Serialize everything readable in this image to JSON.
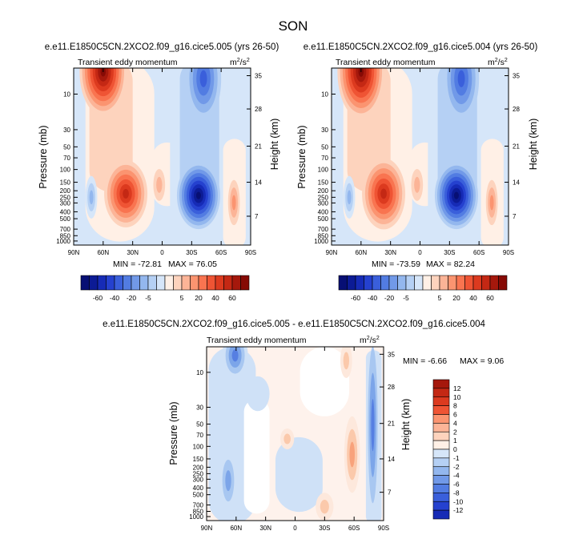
{
  "title": "SON",
  "colors": {
    "positive": [
      "#fff0e6",
      "#fdd3bd",
      "#fcb497",
      "#fb9470",
      "#f97450",
      "#ef5434",
      "#dc3a1f",
      "#c42814",
      "#a5180c",
      "#860a05"
    ],
    "negative": [
      "#d6e6f9",
      "#b5d0f4",
      "#93b7ee",
      "#7199e8",
      "#527ce2",
      "#3a5fdb",
      "#2541cf",
      "#162bb6",
      "#0c1b95",
      "#070f74"
    ],
    "diff_positive": [
      "#fde8dc",
      "#fbc9ab",
      "#f8a27b",
      "#f47a52",
      "#e95232",
      "#d3361c"
    ],
    "diff_negative": [
      "#cfe1f7",
      "#a8c7f1",
      "#7ca5e9",
      "#567fe2",
      "#3457d6",
      "#1d35c4",
      "#0d1c8f"
    ]
  },
  "chart_data": [
    {
      "type": "contour",
      "title": "e.e11.E1850C5CN.2XCO2.f09_g16.cice5.005 (yrs 26-50)",
      "subtitle_left": "Transient eddy momentum",
      "units": "m2/s2",
      "xlabel": "",
      "ylabel": "Pressure (mb)",
      "y2label": "Height (km)",
      "x_ticks": [
        "90N",
        "60N",
        "30N",
        "0",
        "30S",
        "60S",
        "90S"
      ],
      "y_ticks": [
        "10",
        "30",
        "50",
        "70",
        "100",
        "150",
        "200",
        "250",
        "300",
        "400",
        "500",
        "700",
        "850",
        "1000"
      ],
      "y2_ticks": [
        "35",
        "28",
        "21",
        "14",
        "7"
      ],
      "min_label": "MIN = -72.81",
      "max_label": "MAX = 76.05",
      "min": -72.81,
      "max": 76.05,
      "colorbar_levels": [
        "-60",
        "-40",
        "-20",
        "-5",
        "5",
        "20",
        "40",
        "60"
      ]
    },
    {
      "type": "contour",
      "title": "e.e11.E1850C5CN.2XCO2.f09_g16.cice5.004 (yrs 26-50)",
      "subtitle_left": "Transient eddy momentum",
      "units": "m2/s2",
      "xlabel": "",
      "ylabel": "Pressure (mb)",
      "y2label": "Height (km)",
      "x_ticks": [
        "90N",
        "60N",
        "30N",
        "0",
        "30S",
        "60S",
        "90S"
      ],
      "y_ticks": [
        "10",
        "30",
        "50",
        "70",
        "100",
        "150",
        "200",
        "250",
        "300",
        "400",
        "500",
        "700",
        "850",
        "1000"
      ],
      "y2_ticks": [
        "35",
        "28",
        "21",
        "14",
        "7"
      ],
      "min_label": "MIN = -73.59",
      "max_label": "MAX = 82.24",
      "min": -73.59,
      "max": 82.24,
      "colorbar_levels": [
        "-60",
        "-40",
        "-20",
        "-5",
        "5",
        "20",
        "40",
        "60"
      ]
    },
    {
      "type": "contour",
      "title": "e.e11.E1850C5CN.2XCO2.f09_g16.cice5.005 - e.e11.E1850C5CN.2XCO2.f09_g16.cice5.004",
      "subtitle_left": "Transient eddy momentum",
      "units": "m2/s2",
      "xlabel": "",
      "ylabel": "Pressure (mb)",
      "y2label": "Height (km)",
      "x_ticks": [
        "90N",
        "60N",
        "30N",
        "0",
        "30S",
        "60S",
        "90S"
      ],
      "y_ticks": [
        "10",
        "30",
        "50",
        "70",
        "100",
        "150",
        "200",
        "250",
        "300",
        "400",
        "500",
        "700",
        "850",
        "1000"
      ],
      "y2_ticks": [
        "35",
        "28",
        "21",
        "14",
        "7"
      ],
      "min_label": "MIN = -6.66",
      "max_label": "MAX =  9.06",
      "min": -6.66,
      "max": 9.06,
      "colorbar_levels": [
        "12",
        "10",
        "8",
        "6",
        "4",
        "2",
        "1",
        "0",
        "-1",
        "-2",
        "-4",
        "-6",
        "-8",
        "-10",
        "-12"
      ]
    }
  ]
}
